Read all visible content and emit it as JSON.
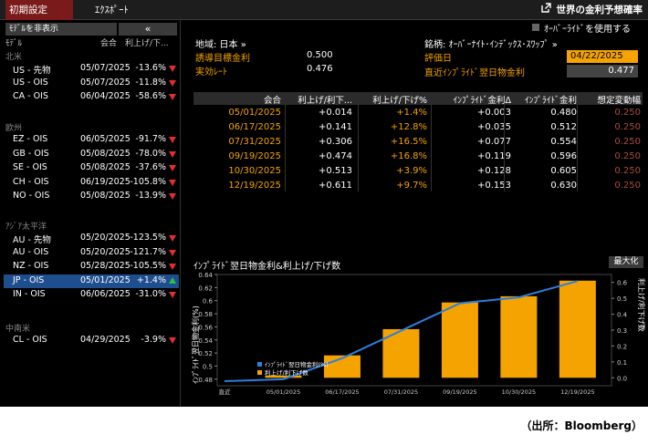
{
  "toolbar": {
    "settings": "初期設定",
    "export": "ｴｸｽﾎﾟｰﾄ",
    "title": "世界の金利予想確率"
  },
  "left": {
    "hide_model": "ﾓﾃﾞﾙを非表示",
    "collapse": "«",
    "headers": [
      "ﾓﾃﾞﾙ",
      "会合",
      "利上げ/下..."
    ],
    "regions": [
      {
        "name": "北米",
        "rows": [
          {
            "model": "US - 先物",
            "date": "05/07/2025",
            "value": "-13.6%",
            "dir": "down"
          },
          {
            "model": "US - OIS",
            "date": "05/07/2025",
            "value": "-11.8%",
            "dir": "down"
          },
          {
            "model": "CA - OIS",
            "date": "06/04/2025",
            "value": "-58.6%",
            "dir": "down"
          }
        ]
      },
      {
        "name": "欧州",
        "rows": [
          {
            "model": "EZ - OIS",
            "date": "06/05/2025",
            "value": "-91.7%",
            "dir": "down"
          },
          {
            "model": "GB - OIS",
            "date": "05/08/2025",
            "value": "-78.0%",
            "dir": "down"
          },
          {
            "model": "SE - OIS",
            "date": "05/08/2025",
            "value": "-37.6%",
            "dir": "down"
          },
          {
            "model": "CH - OIS",
            "date": "06/19/2025",
            "value": "-105.8%",
            "dir": "down"
          },
          {
            "model": "NO - OIS",
            "date": "05/08/2025",
            "value": "-13.9%",
            "dir": "down"
          }
        ]
      },
      {
        "name": "ｱｼﾞｱ太平洋",
        "rows": [
          {
            "model": "AU - 先物",
            "date": "05/20/2025",
            "value": "-123.5%",
            "dir": "down"
          },
          {
            "model": "AU - OIS",
            "date": "05/20/2025",
            "value": "-121.7%",
            "dir": "down"
          },
          {
            "model": "NZ - OIS",
            "date": "05/28/2025",
            "value": "-105.5%",
            "dir": "down"
          },
          {
            "model": "JP - OIS",
            "date": "05/01/2025",
            "value": "+1.4%",
            "dir": "up"
          },
          {
            "model": "IN - OIS",
            "date": "06/06/2025",
            "value": "-31.0%",
            "dir": "down"
          }
        ]
      },
      {
        "name": "中南米",
        "rows": [
          {
            "model": "CL - OIS",
            "date": "04/29/2025",
            "value": "-3.9%",
            "dir": "down"
          }
        ]
      }
    ]
  },
  "info": {
    "region_label": "地域: 日本 »",
    "target_label": "誘導目標金利",
    "target_value": "0.500",
    "effective_label": "実効ﾚｰﾄ",
    "effective_value": "0.476",
    "override_label": "ｵｰﾊﾞｰﾗｲﾄﾞを使用する",
    "ticker_label": "銘柄: ｵｰﾊﾞｰﾅｲﾄ･ｲﾝﾃﾞｯｸｽ･ｽﾜｯﾌﾟ »",
    "eval_label": "評価日",
    "eval_date": "04/22/2025",
    "implied_label": "直近ｲﾝﾌﾟﾗｲﾄﾞ翌日物金利",
    "implied_value": "0.477"
  },
  "table": {
    "headers": [
      "会合",
      "利上げ/利下...",
      "利上げ/下げ%",
      "ｲﾝﾌﾟﾗｲﾄﾞ金利Δ",
      "ｲﾝﾌﾟﾗｲﾄﾞ金利",
      "想定変動幅"
    ],
    "rows": [
      [
        "05/01/2025",
        "+0.014",
        "+1.4%",
        "+0.003",
        "0.480",
        "0.250"
      ],
      [
        "06/17/2025",
        "+0.141",
        "+12.8%",
        "+0.035",
        "0.512",
        "0.250"
      ],
      [
        "07/31/2025",
        "+0.306",
        "+16.5%",
        "+0.077",
        "0.554",
        "0.250"
      ],
      [
        "09/19/2025",
        "+0.474",
        "+16.8%",
        "+0.119",
        "0.596",
        "0.250"
      ],
      [
        "10/30/2025",
        "+0.513",
        "+3.9%",
        "+0.128",
        "0.605",
        "0.250"
      ],
      [
        "12/19/2025",
        "+0.611",
        "+9.7%",
        "+0.153",
        "0.630",
        "0.250"
      ]
    ]
  },
  "chart_title": "ｲﾝﾌﾟﾗｲﾄﾞ翌日物金利&利上げ/下げ数",
  "maximize": "最大化",
  "chart_data": {
    "type": "bar",
    "categories": [
      "直近",
      "05/01/2025",
      "06/17/2025",
      "07/31/2025",
      "09/19/2025",
      "10/30/2025",
      "12/19/2025"
    ],
    "series": [
      {
        "name": "利上げ/利下げ数",
        "type": "bar",
        "axis": "right",
        "values": [
          0,
          0.014,
          0.141,
          0.306,
          0.474,
          0.513,
          0.611
        ]
      },
      {
        "name": "ｲﾝﾌﾟﾗｲﾄﾞ翌日物金利(%)",
        "type": "line",
        "axis": "left",
        "values": [
          0.477,
          0.48,
          0.512,
          0.554,
          0.596,
          0.605,
          0.63
        ]
      }
    ],
    "ylabel_left": "ｲﾝﾌﾟﾗｲﾄﾞ翌日物金利(%)",
    "ylabel_right": "利上げ/利下げ数",
    "ylim_left": [
      0.47,
      0.64
    ],
    "ylim_right": [
      -0.05,
      0.65
    ],
    "yticks_left": [
      "0.64",
      "0.62",
      "0.6",
      "0.58",
      "0.56",
      "0.54",
      "0.52",
      "0.5",
      "0.48"
    ],
    "yticks_right": [
      "0.6",
      "0.5",
      "0.4",
      "0.3",
      "0.2",
      "0.1",
      "0.0"
    ],
    "legend_position": "bottom-left",
    "colors": {
      "bar": "#f4a300",
      "line": "#2a7fe0"
    }
  },
  "source": "（出所：Bloomberg）"
}
